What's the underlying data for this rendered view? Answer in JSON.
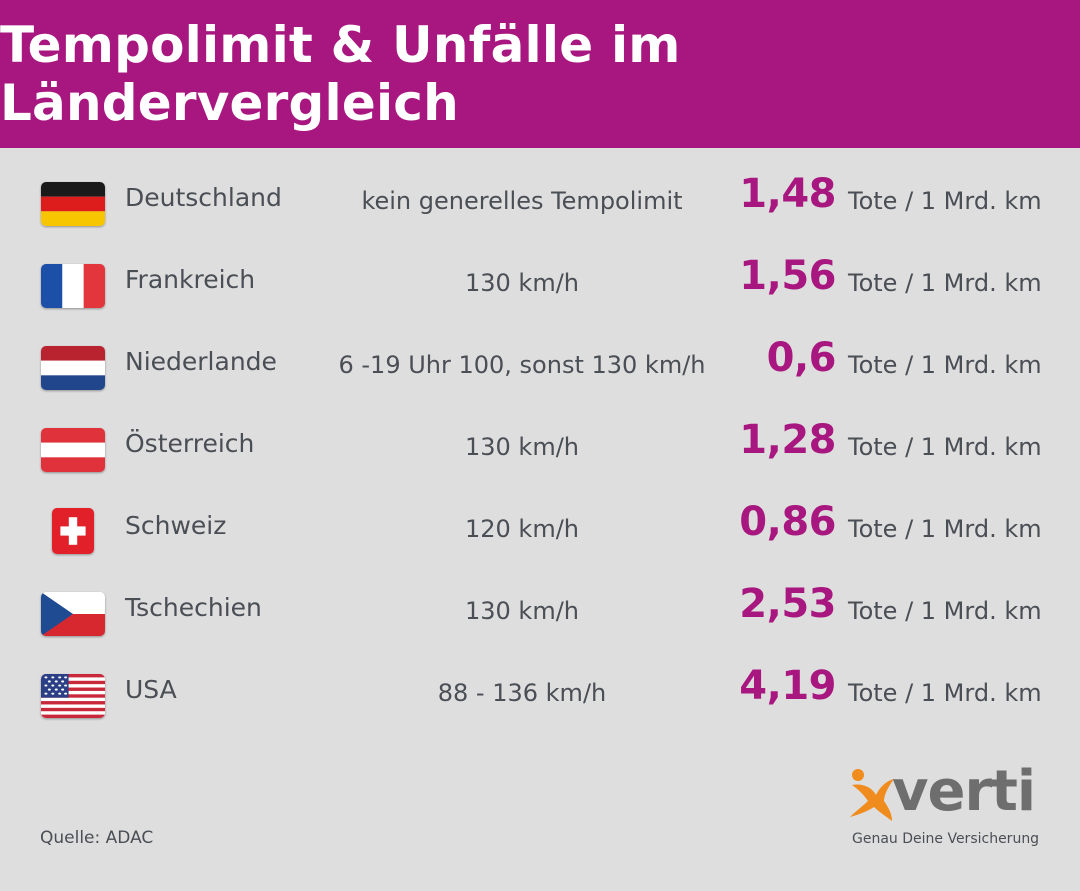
{
  "title": "Tempolimit & Unfälle im Ländervergleich",
  "accent_color": "#a8177f",
  "rows": [
    {
      "country": "Deutschland",
      "flag_icon": "germany-flag-icon",
      "limit": "kein generelles Tempolimit",
      "rate": "1,48",
      "unit": "Tote / 1 Mrd. km"
    },
    {
      "country": "Frankreich",
      "flag_icon": "france-flag-icon",
      "limit": "130 km/h",
      "rate": "1,56",
      "unit": "Tote / 1 Mrd. km"
    },
    {
      "country": "Niederlande",
      "flag_icon": "netherlands-flag-icon",
      "limit": "6 -19 Uhr 100, sonst 130 km/h",
      "rate": "0,6",
      "unit": "Tote / 1 Mrd. km"
    },
    {
      "country": "Österreich",
      "flag_icon": "austria-flag-icon",
      "limit": "130 km/h",
      "rate": "1,28",
      "unit": "Tote / 1 Mrd. km"
    },
    {
      "country": "Schweiz",
      "flag_icon": "switzerland-flag-icon",
      "limit": "120 km/h",
      "rate": "0,86",
      "unit": "Tote / 1 Mrd. km"
    },
    {
      "country": "Tschechien",
      "flag_icon": "czechia-flag-icon",
      "limit": "130 km/h",
      "rate": "2,53",
      "unit": "Tote / 1 Mrd. km"
    },
    {
      "country": "USA",
      "flag_icon": "usa-flag-icon",
      "limit": "88 - 136 km/h",
      "rate": "4,19",
      "unit": "Tote / 1 Mrd. km"
    }
  ],
  "source": "Quelle: ADAC",
  "logo": {
    "wordmark": "verti",
    "tagline": "Genau Deine Versicherung",
    "mark_color": "#f08c1e",
    "word_color": "#6e6e6e"
  }
}
